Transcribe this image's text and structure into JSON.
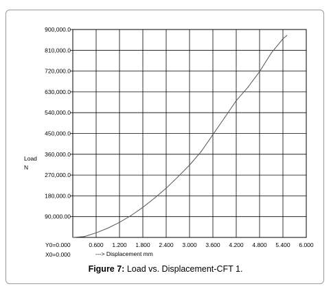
{
  "chart_data": {
    "type": "line",
    "x": [
      0,
      0.3,
      0.6,
      0.9,
      1.2,
      1.5,
      1.8,
      2.1,
      2.4,
      2.7,
      3.0,
      3.3,
      3.6,
      3.9,
      4.2,
      4.5,
      4.8,
      5.1,
      5.4,
      5.5
    ],
    "y": [
      0,
      4000,
      20000,
      40000,
      65000,
      95000,
      130000,
      170000,
      213000,
      262000,
      313000,
      372000,
      445000,
      518000,
      592000,
      650000,
      718000,
      798000,
      860000,
      874000
    ],
    "xlim": [
      0,
      6.0
    ],
    "ylim": [
      0,
      900000
    ],
    "xticks": [
      "0.600",
      "1.200",
      "1.800",
      "2.400",
      "3.000",
      "3.600",
      "4.200",
      "4.800",
      "5.400",
      "6.000"
    ],
    "yticks": [
      "900,000.0",
      "810,000.0",
      "720,000.0",
      "630,000.0",
      "540,000.0",
      "450,000.0",
      "360,000.0",
      "270,000.0",
      "180,000.0",
      "90,000.00"
    ],
    "ylabel_line1": "Load",
    "ylabel_line2": "N",
    "xlabel": "---> Displacement mm",
    "origin_y": "Y0=0.000",
    "origin_x": "X0=0.000",
    "grid": true,
    "line_color": "#555555"
  },
  "caption": {
    "label": "Figure 7:",
    "text": " Load vs. Displacement-CFT 1."
  }
}
